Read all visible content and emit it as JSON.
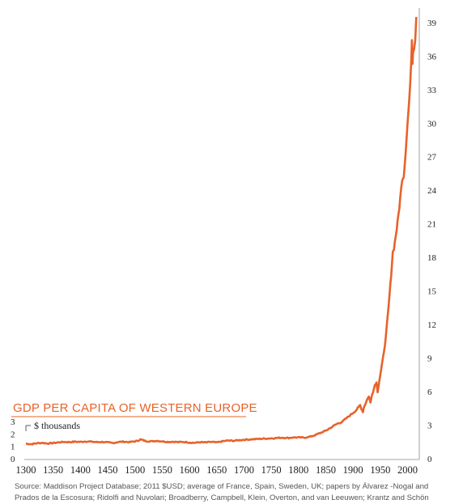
{
  "chart_data": {
    "type": "line",
    "title": "GDP PER CAPITA OF WESTERN EUROPE",
    "unit_label": "$ thousands",
    "x_ticks": [
      "1300",
      "1350",
      "1400",
      "1450",
      "1500",
      "1550",
      "1600",
      "1650",
      "1700",
      "1750",
      "1800",
      "1850",
      "1900",
      "1950",
      "2000"
    ],
    "y_ticks_right": [
      "0",
      "3",
      "6",
      "9",
      "12",
      "15",
      "18",
      "21",
      "24",
      "27",
      "30",
      "33",
      "36",
      "39"
    ],
    "y_ticks_left": [
      "0",
      "1",
      "2",
      "3"
    ],
    "xlim": [
      1300,
      2020
    ],
    "ylim": [
      0,
      40
    ],
    "line_color": "#e8622a",
    "accent_color": "#e8622a",
    "series": [
      {
        "x": [
          1300,
          1310,
          1320,
          1330,
          1340,
          1350,
          1360,
          1370,
          1380,
          1390,
          1400,
          1410,
          1420,
          1430,
          1440,
          1450,
          1460,
          1470,
          1480,
          1490,
          1500,
          1505,
          1510,
          1515,
          1520,
          1530,
          1540,
          1550,
          1560,
          1570,
          1580,
          1590,
          1600,
          1610,
          1620,
          1630,
          1640,
          1650,
          1660,
          1670,
          1680,
          1690,
          1700,
          1710,
          1720,
          1730,
          1740,
          1750,
          1760,
          1770,
          1780,
          1790,
          1800,
          1810,
          1820,
          1830,
          1840,
          1850,
          1860,
          1870,
          1880,
          1890,
          1900,
          1905,
          1910,
          1913,
          1915,
          1918,
          1920,
          1925,
          1929,
          1932,
          1935,
          1938,
          1940,
          1943,
          1945,
          1947,
          1950,
          1955,
          1960,
          1965,
          1970,
          1973,
          1975,
          1980,
          1985,
          1990,
          1993,
          1995,
          2000,
          2005,
          2007,
          2008,
          2009,
          2010,
          2012,
          2014,
          2016
        ],
        "y": [
          1.35,
          1.3,
          1.38,
          1.42,
          1.36,
          1.4,
          1.46,
          1.5,
          1.48,
          1.52,
          1.5,
          1.55,
          1.52,
          1.48,
          1.5,
          1.45,
          1.4,
          1.5,
          1.52,
          1.48,
          1.55,
          1.6,
          1.72,
          1.65,
          1.58,
          1.55,
          1.6,
          1.55,
          1.5,
          1.52,
          1.48,
          1.5,
          1.45,
          1.42,
          1.48,
          1.45,
          1.5,
          1.45,
          1.55,
          1.62,
          1.6,
          1.65,
          1.7,
          1.72,
          1.75,
          1.78,
          1.8,
          1.82,
          1.85,
          1.88,
          1.85,
          1.9,
          1.9,
          1.88,
          1.95,
          2.1,
          2.3,
          2.5,
          2.8,
          3.1,
          3.3,
          3.7,
          4.1,
          4.3,
          4.6,
          4.8,
          4.5,
          4.2,
          4.6,
          5.2,
          5.6,
          5.0,
          5.8,
          6.2,
          6.6,
          6.8,
          6.0,
          6.6,
          7.5,
          9.0,
          10.8,
          13.5,
          16.5,
          18.5,
          18.8,
          20.5,
          22.5,
          25.0,
          25.3,
          26.5,
          30.0,
          33.5,
          36.0,
          37.5,
          35.5,
          36.5,
          36.8,
          37.5,
          39.5
        ]
      }
    ]
  },
  "source_note": "Source: Maddison Project Database; 2011 $USD; average of France, Spain, Sweden, UK; papers by Álvarez -Nogal and Prados de la Escosura; Ridolfi and Nuvolari; Broadberry, Campbell, Klein, Overton, and van Leeuwen; Krantz and Schön"
}
